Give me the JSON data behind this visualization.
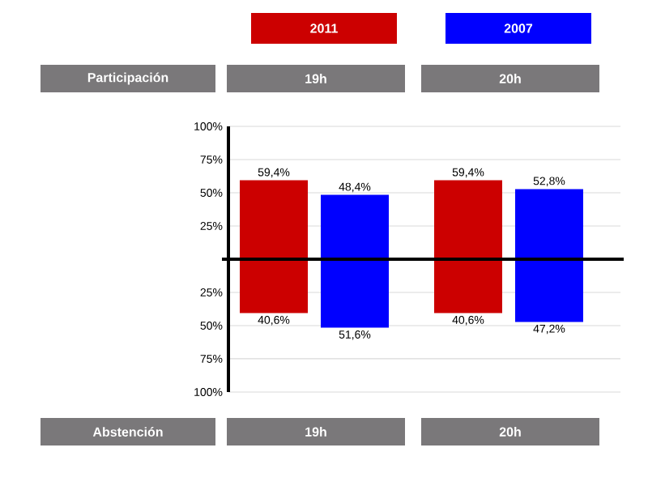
{
  "chart_data": [
    {
      "type": "bar",
      "xlabel": "Participación",
      "categories": [
        "19h",
        "20h"
      ],
      "series": [
        {
          "name": "2011",
          "color": "#cc0000",
          "values": [
            59.4,
            59.4
          ],
          "value_labels": [
            "59,4%",
            "59,4%"
          ]
        },
        {
          "name": "2007",
          "color": "#0000ff",
          "values": [
            48.4,
            52.8
          ],
          "value_labels": [
            "48,4%",
            "52,8%"
          ]
        }
      ],
      "ylim": [
        0,
        100
      ],
      "yticks": [
        {
          "value": 25,
          "label": "25%"
        },
        {
          "value": 50,
          "label": "50%"
        },
        {
          "value": 75,
          "label": "75%"
        },
        {
          "value": 100,
          "label": "100%"
        }
      ],
      "grid": "y",
      "legend": "top"
    },
    {
      "type": "bar",
      "xlabel": "Abstención",
      "categories": [
        "19h",
        "20h"
      ],
      "series": [
        {
          "color": "#cc0000",
          "values": [
            40.6,
            40.6
          ],
          "value_labels": [
            "40,6%",
            "40,6%"
          ]
        },
        {
          "color": "#0000ff",
          "values": [
            51.6,
            47.2
          ],
          "value_labels": [
            "51,6%",
            "47,2%"
          ]
        }
      ],
      "ylim": [
        100,
        0
      ],
      "yticks": [
        {
          "value": 25,
          "label": "25%"
        },
        {
          "value": 50,
          "label": "50%"
        },
        {
          "value": 75,
          "label": "75%"
        },
        {
          "value": 100,
          "label": "100%"
        }
      ],
      "grid": "y"
    }
  ]
}
